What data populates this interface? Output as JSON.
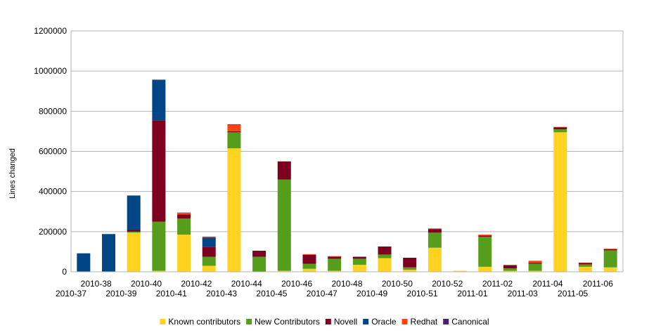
{
  "chart_data": {
    "type": "bar",
    "stacked": true,
    "title": "",
    "xlabel": "",
    "ylabel": "Lines changed",
    "ylim": [
      0,
      1200000
    ],
    "yticks": [
      "0",
      "200000",
      "400000",
      "600000",
      "800000",
      "1000000",
      "1200000"
    ],
    "grid": true,
    "legend_position": "bottom",
    "categories": [
      "2010-37",
      "2010-38",
      "2010-39",
      "2010-40",
      "2010-41",
      "2010-42",
      "2010-43",
      "2010-44",
      "2010-45",
      "2010-46",
      "2010-47",
      "2010-48",
      "2010-49",
      "2010-50",
      "2010-51",
      "2010-52",
      "2011-01",
      "2011-02",
      "2011-03",
      "2011-04",
      "2011-05",
      "2011-06"
    ],
    "series": [
      {
        "name": "Known contributors",
        "color": "#ffd320",
        "values": [
          0,
          0,
          195000,
          5000,
          185000,
          30000,
          615000,
          0,
          5000,
          15000,
          5000,
          35000,
          68000,
          10000,
          120000,
          5000,
          25000,
          5000,
          5000,
          695000,
          25000,
          22000
        ]
      },
      {
        "name": "New Contributors",
        "color": "#579d1c",
        "values": [
          0,
          0,
          5000,
          245000,
          80000,
          45000,
          80000,
          75000,
          455000,
          25000,
          60000,
          30000,
          18000,
          12000,
          75000,
          0,
          150000,
          12000,
          35000,
          15000,
          12000,
          85000
        ]
      },
      {
        "name": "Novell",
        "color": "#7e0021",
        "values": [
          0,
          0,
          10000,
          505000,
          20000,
          50000,
          5000,
          30000,
          90000,
          45000,
          10000,
          10000,
          40000,
          48000,
          18000,
          0,
          5000,
          15000,
          5000,
          10000,
          7000,
          5000
        ]
      },
      {
        "name": "Oracle",
        "color": "#004586",
        "values": [
          92000,
          188000,
          170000,
          200000,
          0,
          45000,
          0,
          0,
          0,
          0,
          0,
          0,
          0,
          0,
          0,
          0,
          0,
          0,
          0,
          0,
          0,
          0
        ]
      },
      {
        "name": "Redhat",
        "color": "#ff420e",
        "values": [
          0,
          0,
          0,
          0,
          8000,
          3000,
          33000,
          0,
          0,
          3000,
          3000,
          0,
          0,
          0,
          3000,
          0,
          5000,
          3000,
          10000,
          2000,
          2000,
          3000
        ]
      },
      {
        "name": "Canonical",
        "color": "#4b1f6f",
        "values": [
          0,
          0,
          0,
          2000,
          2000,
          2000,
          2000,
          0,
          0,
          0,
          0,
          0,
          0,
          0,
          0,
          0,
          0,
          0,
          0,
          0,
          0,
          0
        ]
      }
    ]
  }
}
